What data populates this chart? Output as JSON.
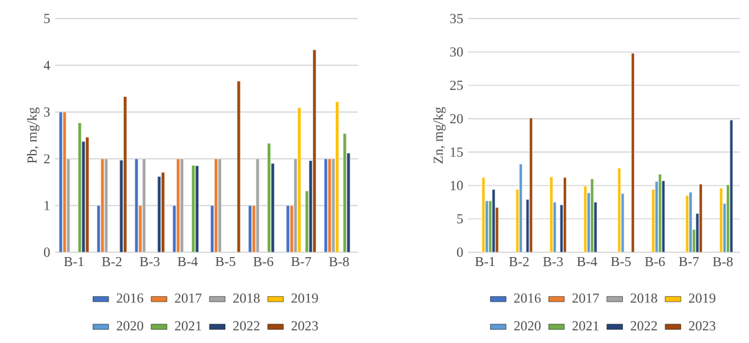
{
  "chart_data": [
    {
      "type": "bar",
      "ylabel": "Pb, mg/kg",
      "categories": [
        "B-1",
        "B-2",
        "B-3",
        "B-4",
        "B-5",
        "B-6",
        "B-7",
        "B-8"
      ],
      "ylim": [
        0,
        5
      ],
      "yticks": [
        0,
        1,
        2,
        3,
        4,
        5
      ],
      "grid": "y",
      "legend": "bottom",
      "series": [
        {
          "name": "2016",
          "color": "#4472c4",
          "values": [
            3,
            1,
            2,
            1,
            1,
            1,
            1,
            2
          ]
        },
        {
          "name": "2017",
          "color": "#ed7d31",
          "values": [
            3,
            2,
            1,
            2,
            2,
            1,
            1,
            2
          ]
        },
        {
          "name": "2018",
          "color": "#a5a5a5",
          "values": [
            2,
            2,
            2,
            2,
            2,
            2,
            2,
            2
          ]
        },
        {
          "name": "2019",
          "color": "#ffc000",
          "values": [
            null,
            null,
            null,
            null,
            null,
            null,
            3.09,
            3.22
          ]
        },
        {
          "name": "2020",
          "color": "#5b9bd5",
          "values": [
            null,
            null,
            null,
            null,
            null,
            null,
            null,
            null
          ]
        },
        {
          "name": "2021",
          "color": "#70ad47",
          "values": [
            2.77,
            null,
            null,
            1.86,
            null,
            2.33,
            1.31,
            2.54
          ]
        },
        {
          "name": "2022",
          "color": "#264478",
          "values": [
            2.37,
            1.97,
            1.62,
            1.85,
            null,
            1.9,
            1.96,
            2.12
          ]
        },
        {
          "name": "2023",
          "color": "#9e480e",
          "values": [
            2.46,
            3.33,
            1.71,
            null,
            3.66,
            null,
            4.33,
            null
          ]
        }
      ]
    },
    {
      "type": "bar",
      "ylabel": "Zn, mg/kg",
      "categories": [
        "B-1",
        "B-2",
        "B-3",
        "B-4",
        "B-5",
        "B-6",
        "B-7",
        "B-8"
      ],
      "ylim": [
        0,
        35
      ],
      "yticks": [
        0,
        5,
        10,
        15,
        20,
        25,
        30,
        35
      ],
      "grid": "y",
      "legend": "bottom",
      "series": [
        {
          "name": "2016",
          "color": "#4472c4",
          "values": [
            null,
            null,
            null,
            null,
            null,
            null,
            null,
            null
          ]
        },
        {
          "name": "2017",
          "color": "#ed7d31",
          "values": [
            null,
            null,
            null,
            null,
            null,
            null,
            null,
            null
          ]
        },
        {
          "name": "2018",
          "color": "#a5a5a5",
          "values": [
            null,
            null,
            null,
            null,
            null,
            null,
            null,
            null
          ]
        },
        {
          "name": "2019",
          "color": "#ffc000",
          "values": [
            11.2,
            9.4,
            11.3,
            9.9,
            12.6,
            9.4,
            8.5,
            9.6
          ]
        },
        {
          "name": "2020",
          "color": "#5b9bd5",
          "values": [
            7.7,
            13.2,
            7.5,
            8.9,
            8.8,
            10.6,
            9.0,
            7.3
          ]
        },
        {
          "name": "2021",
          "color": "#70ad47",
          "values": [
            7.7,
            null,
            null,
            11.0,
            null,
            11.7,
            3.4,
            10.1
          ]
        },
        {
          "name": "2022",
          "color": "#264478",
          "values": [
            9.4,
            7.9,
            7.1,
            7.5,
            null,
            10.7,
            5.8,
            19.8
          ]
        },
        {
          "name": "2023",
          "color": "#9e480e",
          "values": [
            6.7,
            20.1,
            11.2,
            null,
            29.8,
            null,
            10.2,
            null
          ]
        }
      ]
    }
  ]
}
